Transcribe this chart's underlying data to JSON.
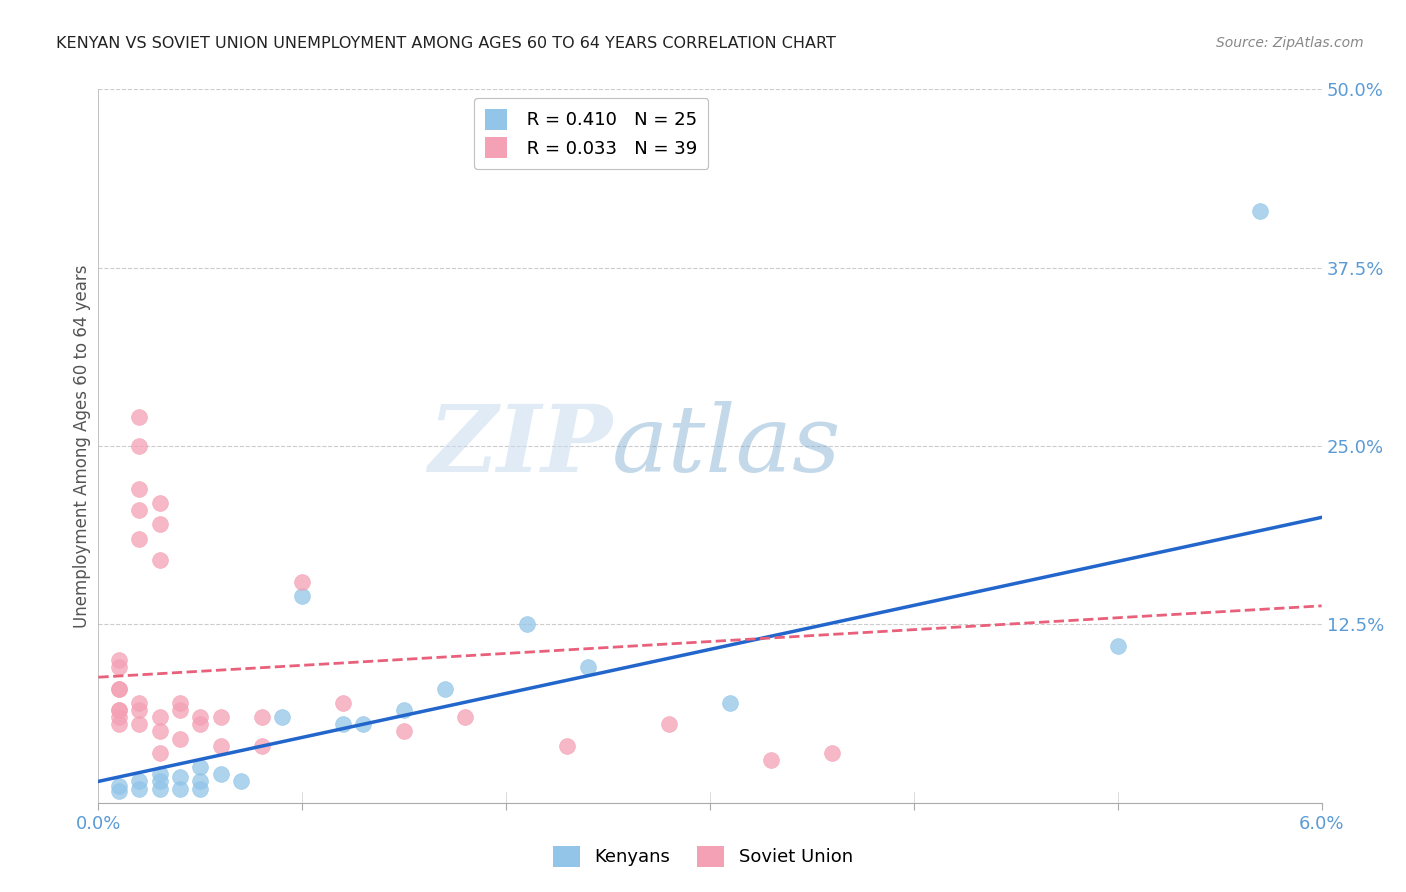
{
  "title": "KENYAN VS SOVIET UNION UNEMPLOYMENT AMONG AGES 60 TO 64 YEARS CORRELATION CHART",
  "source": "Source: ZipAtlas.com",
  "ylabel": "Unemployment Among Ages 60 to 64 years",
  "xlim": [
    0.0,
    0.06
  ],
  "ylim": [
    0.0,
    0.5
  ],
  "xticks": [
    0.0,
    0.01,
    0.02,
    0.03,
    0.04,
    0.05,
    0.06
  ],
  "xtick_labels": [
    "0.0%",
    "",
    "",
    "",
    "",
    "",
    "6.0%"
  ],
  "ytick_labels_right": [
    "",
    "12.5%",
    "25.0%",
    "37.5%",
    "50.0%"
  ],
  "yticks_right": [
    0.0,
    0.125,
    0.25,
    0.375,
    0.5
  ],
  "kenya_R": 0.41,
  "kenya_N": 25,
  "soviet_R": 0.033,
  "soviet_N": 39,
  "kenya_color": "#92C5E8",
  "soviet_color": "#F4A0B5",
  "kenya_line_color": "#2266CC",
  "soviet_line_color": "#E8607A",
  "background_color": "#FFFFFF",
  "grid_color": "#CCCCCC",
  "title_color": "#222222",
  "axis_color": "#5B9BD5",
  "kenya_line_x0": 0.0,
  "kenya_line_y0": 0.015,
  "kenya_line_x1": 0.06,
  "kenya_line_y1": 0.2,
  "soviet_line_x0": 0.0,
  "soviet_line_y0": 0.088,
  "soviet_line_x1": 0.06,
  "soviet_line_y1": 0.138,
  "kenya_x": [
    0.001,
    0.001,
    0.002,
    0.002,
    0.003,
    0.003,
    0.003,
    0.004,
    0.004,
    0.005,
    0.005,
    0.005,
    0.006,
    0.007,
    0.009,
    0.01,
    0.012,
    0.013,
    0.015,
    0.017,
    0.021,
    0.024,
    0.031,
    0.05,
    0.057
  ],
  "kenya_y": [
    0.008,
    0.012,
    0.015,
    0.01,
    0.02,
    0.015,
    0.01,
    0.018,
    0.01,
    0.025,
    0.015,
    0.01,
    0.02,
    0.015,
    0.06,
    0.145,
    0.055,
    0.055,
    0.065,
    0.08,
    0.125,
    0.095,
    0.07,
    0.11,
    0.415
  ],
  "soviet_x": [
    0.001,
    0.001,
    0.001,
    0.001,
    0.001,
    0.001,
    0.001,
    0.001,
    0.002,
    0.002,
    0.002,
    0.002,
    0.002,
    0.002,
    0.002,
    0.002,
    0.003,
    0.003,
    0.003,
    0.003,
    0.003,
    0.003,
    0.004,
    0.004,
    0.004,
    0.005,
    0.005,
    0.006,
    0.006,
    0.008,
    0.008,
    0.01,
    0.012,
    0.015,
    0.018,
    0.023,
    0.028,
    0.033,
    0.036
  ],
  "soviet_y": [
    0.065,
    0.06,
    0.1,
    0.095,
    0.08,
    0.08,
    0.065,
    0.055,
    0.27,
    0.25,
    0.22,
    0.205,
    0.185,
    0.07,
    0.065,
    0.055,
    0.21,
    0.195,
    0.17,
    0.06,
    0.05,
    0.035,
    0.07,
    0.065,
    0.045,
    0.06,
    0.055,
    0.06,
    0.04,
    0.06,
    0.04,
    0.155,
    0.07,
    0.05,
    0.06,
    0.04,
    0.055,
    0.03,
    0.035
  ]
}
